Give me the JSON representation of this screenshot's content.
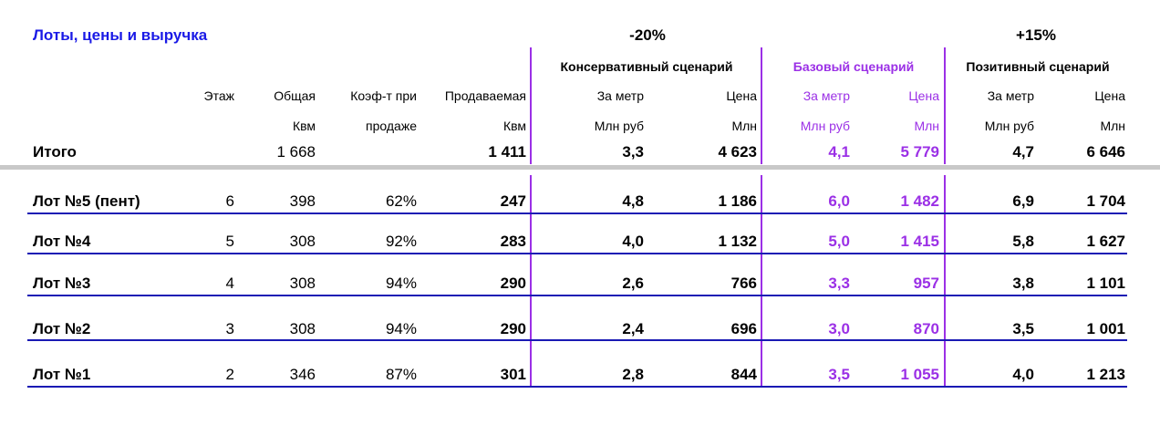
{
  "title": "Лоты, цены и выручка",
  "scenario_pct": {
    "conservative": "-20%",
    "positive": "+15%"
  },
  "scenarios": {
    "conservative": "Консервативный сценарий",
    "base": "Базовый сценарий",
    "positive": "Позитивный сценарий"
  },
  "headers": {
    "floor": "Этаж",
    "total_l1": "Общая",
    "total_l2": "Квм",
    "coef_l1": "Коэф-т при",
    "coef_l2": "продаже",
    "sell_l1": "Продаваемая",
    "sell_l2": "Квм",
    "per_m_l1": "За метр",
    "per_m_l2": "Млн руб",
    "price_l1": "Цена",
    "price_l2": "Млн"
  },
  "colors": {
    "title": "#1a1ae6",
    "base_scenario": "#9b30e6",
    "divider": "#9b30e6",
    "row_line": "#1a1ab4",
    "separator": "#c8c8c8"
  },
  "total": {
    "label": "Итого",
    "total_sqm": "1 668",
    "sell_sqm": "1 411",
    "cons_pm": "3,3",
    "cons_price": "4 623",
    "base_pm": "4,1",
    "base_price": "5 779",
    "pos_pm": "4,7",
    "pos_price": "6 646"
  },
  "lots": [
    {
      "label": "Лот №5 (пент)",
      "floor": "6",
      "total_sqm": "398",
      "coef": "62%",
      "sell_sqm": "247",
      "cons_pm": "4,8",
      "cons_price": "1 186",
      "base_pm": "6,0",
      "base_price": "1 482",
      "pos_pm": "6,9",
      "pos_price": "1 704"
    },
    {
      "label": "Лот №4",
      "floor": "5",
      "total_sqm": "308",
      "coef": "92%",
      "sell_sqm": "283",
      "cons_pm": "4,0",
      "cons_price": "1 132",
      "base_pm": "5,0",
      "base_price": "1 415",
      "pos_pm": "5,8",
      "pos_price": "1 627"
    },
    {
      "label": "Лот №3",
      "floor": "4",
      "total_sqm": "308",
      "coef": "94%",
      "sell_sqm": "290",
      "cons_pm": "2,6",
      "cons_price": "766",
      "base_pm": "3,3",
      "base_price": "957",
      "pos_pm": "3,8",
      "pos_price": "1 101"
    },
    {
      "label": "Лот №2",
      "floor": "3",
      "total_sqm": "308",
      "coef": "94%",
      "sell_sqm": "290",
      "cons_pm": "2,4",
      "cons_price": "696",
      "base_pm": "3,0",
      "base_price": "870",
      "pos_pm": "3,5",
      "pos_price": "1 001"
    },
    {
      "label": "Лот №1",
      "floor": "2",
      "total_sqm": "346",
      "coef": "87%",
      "sell_sqm": "301",
      "cons_pm": "2,8",
      "cons_price": "844",
      "base_pm": "3,5",
      "base_price": "1 055",
      "pos_pm": "4,0",
      "pos_price": "1 213"
    }
  ]
}
